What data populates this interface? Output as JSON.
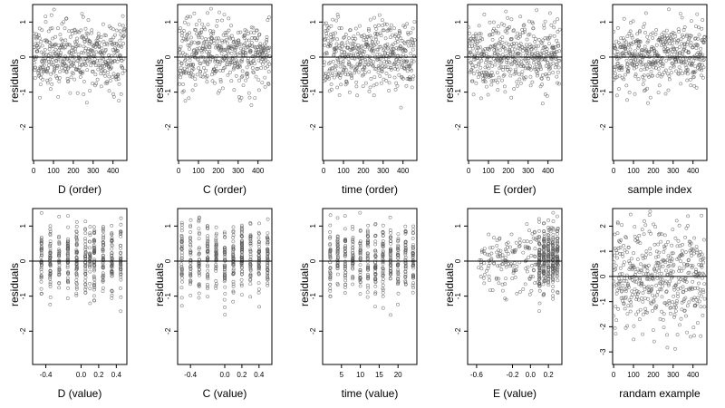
{
  "chart_data": [
    {
      "type": "scatter",
      "xlabel": "D (order)",
      "ylabel": "residuals",
      "xlim": [
        -5,
        470
      ],
      "ylim": [
        -2.95,
        1.5
      ],
      "xticks": [
        0,
        100,
        200,
        300,
        400
      ],
      "yticks": [
        -2,
        -1,
        0,
        1
      ],
      "hline": 0,
      "n": 460,
      "pattern": "order",
      "seed": 11
    },
    {
      "type": "scatter",
      "xlabel": "C (order)",
      "ylabel": "residuals",
      "xlim": [
        -5,
        470
      ],
      "ylim": [
        -2.95,
        1.5
      ],
      "xticks": [
        0,
        100,
        200,
        300,
        400
      ],
      "yticks": [
        -2,
        -1,
        0,
        1
      ],
      "hline": 0,
      "n": 460,
      "pattern": "order",
      "seed": 23
    },
    {
      "type": "scatter",
      "xlabel": "time (order)",
      "ylabel": "residuals",
      "xlim": [
        -5,
        470
      ],
      "ylim": [
        -2.95,
        1.5
      ],
      "xticks": [
        0,
        100,
        200,
        300,
        400
      ],
      "yticks": [
        -2,
        -1,
        0,
        1
      ],
      "hline": 0,
      "n": 460,
      "pattern": "order",
      "seed": 37
    },
    {
      "type": "scatter",
      "xlabel": "E (order)",
      "ylabel": "residuals",
      "xlim": [
        -5,
        470
      ],
      "ylim": [
        -2.95,
        1.5
      ],
      "xticks": [
        0,
        100,
        200,
        300,
        400
      ],
      "yticks": [
        -2,
        -1,
        0,
        1
      ],
      "hline": 0,
      "n": 460,
      "pattern": "order",
      "seed": 41
    },
    {
      "type": "scatter",
      "xlabel": "sample index",
      "ylabel": "residuals",
      "xlim": [
        -5,
        470
      ],
      "ylim": [
        -2.95,
        1.5
      ],
      "xticks": [
        0,
        100,
        200,
        300,
        400
      ],
      "yticks": [
        -2,
        -1,
        0,
        1
      ],
      "hline": 0,
      "n": 460,
      "pattern": "order",
      "seed": 53
    },
    {
      "type": "scatter",
      "xlabel": "D (value)",
      "ylabel": "residuals",
      "xlim": [
        -0.55,
        0.52
      ],
      "ylim": [
        -2.95,
        1.5
      ],
      "xticks": [
        -0.4,
        0.0,
        0.2,
        0.4
      ],
      "xticklabels": [
        "-0.4",
        "0.0",
        "0.2",
        "0.4"
      ],
      "yticks": [
        -2,
        -1,
        0,
        1
      ],
      "hline": 0,
      "n": 460,
      "pattern": "columns",
      "columns": [
        -0.45,
        -0.35,
        -0.25,
        -0.15,
        -0.05,
        0.05,
        0.1,
        0.15,
        0.25,
        0.35,
        0.45
      ],
      "seed": 61
    },
    {
      "type": "scatter",
      "xlabel": "C (value)",
      "ylabel": "residuals",
      "xlim": [
        -0.55,
        0.55
      ],
      "ylim": [
        -2.95,
        1.5
      ],
      "xticks": [
        -0.4,
        0.0,
        0.2,
        0.4
      ],
      "xticklabels": [
        "-0.4",
        "0.0",
        "0.2",
        "0.4"
      ],
      "yticks": [
        -2,
        -1,
        0,
        1
      ],
      "hline": 0,
      "n": 460,
      "pattern": "columns",
      "columns": [
        -0.5,
        -0.4,
        -0.3,
        -0.2,
        -0.1,
        0.0,
        0.1,
        0.2,
        0.3,
        0.4,
        0.5
      ],
      "seed": 71
    },
    {
      "type": "scatter",
      "xlabel": "time (value)",
      "ylabel": "residuals",
      "xlim": [
        0,
        25
      ],
      "ylim": [
        -2.95,
        1.5
      ],
      "xticks": [
        5,
        10,
        15,
        20
      ],
      "yticks": [
        -2,
        -1,
        0,
        1
      ],
      "hline": 0,
      "n": 460,
      "pattern": "columns",
      "columns": [
        2,
        4,
        6,
        8,
        10,
        12,
        14,
        16,
        18,
        20,
        22,
        24
      ],
      "seed": 83
    },
    {
      "type": "scatter",
      "xlabel": "E (value)",
      "ylabel": "residuals",
      "xlim": [
        -0.7,
        0.35
      ],
      "ylim": [
        -2.95,
        1.5
      ],
      "xticks": [
        -0.6,
        -0.2,
        0.0,
        0.2
      ],
      "xticklabels": [
        "-0.6",
        "-0.2",
        "0.0",
        "0.2"
      ],
      "yticks": [
        -2,
        -1,
        0,
        1
      ],
      "hline": 0,
      "n": 460,
      "pattern": "skewed",
      "columns": [
        0.1,
        0.15,
        0.2,
        0.25,
        0.3
      ],
      "seed": 97
    },
    {
      "type": "scatter",
      "xlabel": "randam example",
      "ylabel": "residuals",
      "xlim": [
        -5,
        470
      ],
      "ylim": [
        -3.5,
        2.7
      ],
      "xticks": [
        0,
        100,
        200,
        300,
        400
      ],
      "yticks": [
        -3,
        -2,
        -1,
        0,
        1,
        2
      ],
      "hline": 0,
      "n": 460,
      "pattern": "random",
      "seed": 101
    }
  ]
}
